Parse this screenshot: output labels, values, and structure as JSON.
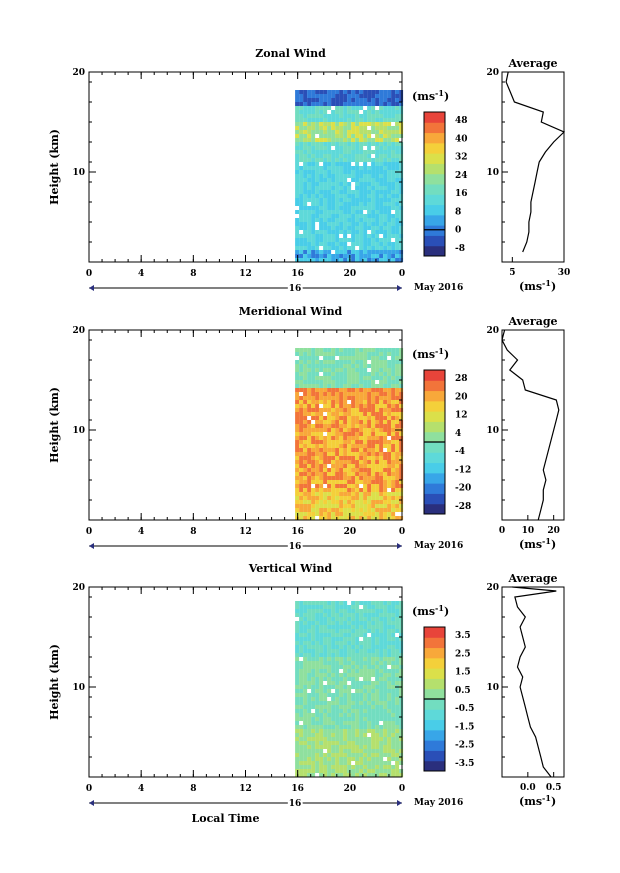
{
  "palette": [
    "#2a2f7d",
    "#2a4fb7",
    "#2f7ad9",
    "#38a6e8",
    "#49cde8",
    "#5ed9d9",
    "#72ddc0",
    "#8fe09e",
    "#b5e06d",
    "#dbe04a",
    "#f4d03a",
    "#f8a83a",
    "#f2743a",
    "#e8443a"
  ],
  "date_label": "May 2016",
  "day_label": "16",
  "xlabel": "Local Time",
  "chart_data": [
    {
      "type": "heatmap",
      "title": "Zonal Wind",
      "ylabel": "Height (km)",
      "x_ticks": [
        "0",
        "4",
        "8",
        "12",
        "16",
        "20",
        "0"
      ],
      "xlim": [
        0,
        24
      ],
      "ylim": [
        1,
        20
      ],
      "y_ticks": [
        10,
        20
      ],
      "data_x_start": 15.8,
      "colorbar": {
        "unit": "(ms",
        "unit_sup": "-1",
        "unit_end": ")",
        "ticks": [
          "-8",
          "0",
          "8",
          "16",
          "24",
          "32",
          "40",
          "48"
        ],
        "zero_index": 1
      },
      "profile": {
        "title": "Average",
        "xlim": [
          0,
          30
        ],
        "x_ticks": [
          {
            "v": 5,
            "label": "5"
          },
          {
            "v": 30,
            "label": "30"
          }
        ],
        "xlabel": "(ms",
        "heights": [
          2,
          3,
          4,
          5,
          6,
          7,
          8,
          9,
          10,
          11,
          12,
          13,
          14,
          15,
          16,
          17,
          18,
          19,
          20
        ],
        "values": [
          10,
          12,
          13,
          13,
          14,
          14,
          15,
          16,
          17,
          18,
          21,
          25,
          30,
          19,
          20,
          6,
          4,
          2,
          3
        ]
      }
    },
    {
      "type": "heatmap",
      "title": "Meridional Wind",
      "ylabel": "Height (km)",
      "x_ticks": [
        "0",
        "4",
        "8",
        "12",
        "16",
        "20",
        "0"
      ],
      "xlim": [
        0,
        24
      ],
      "ylim": [
        1,
        20
      ],
      "y_ticks": [
        10,
        20
      ],
      "data_x_start": 15.8,
      "colorbar": {
        "unit": "(ms",
        "unit_sup": "-1",
        "unit_end": ")",
        "ticks": [
          "-28",
          "-20",
          "-12",
          "-4",
          "4",
          "12",
          "20",
          "28"
        ],
        "zero_index": 3.5
      },
      "profile": {
        "title": "Average",
        "xlim": [
          0,
          24
        ],
        "x_ticks": [
          {
            "v": 0,
            "label": "0"
          },
          {
            "v": 10,
            "label": "10"
          },
          {
            "v": 20,
            "label": "20"
          }
        ],
        "xlabel": "(ms",
        "heights": [
          1,
          2,
          3,
          4,
          5,
          6,
          7,
          8,
          9,
          10,
          11,
          12,
          13,
          14,
          15,
          16,
          17,
          18,
          19,
          20
        ],
        "values": [
          14,
          15,
          16,
          16,
          17,
          16,
          17,
          18,
          19,
          20,
          21,
          22,
          21,
          9,
          8,
          3,
          6,
          2,
          0,
          1
        ]
      }
    },
    {
      "type": "heatmap",
      "title": "Vertical Wind",
      "ylabel": "Height (km)",
      "x_ticks": [
        "0",
        "4",
        "8",
        "12",
        "16",
        "20",
        "0"
      ],
      "xlim": [
        0,
        24
      ],
      "ylim": [
        1,
        20
      ],
      "y_ticks": [
        10,
        20
      ],
      "data_x_start": 15.8,
      "colorbar": {
        "unit": "(ms",
        "unit_sup": "-1",
        "unit_end": ")",
        "ticks": [
          "-3.5",
          "-2.5",
          "-1.5",
          "-0.5",
          "0.5",
          "1.5",
          "2.5",
          "3.5"
        ],
        "zero_index": 3.5
      },
      "profile": {
        "title": "Average",
        "xlim": [
          -0.5,
          0.7
        ],
        "x_ticks": [
          {
            "v": 0.0,
            "label": "0.0"
          },
          {
            "v": 0.5,
            "label": "0.5"
          }
        ],
        "xlabel": "(ms",
        "heights": [
          1,
          2,
          3,
          4,
          5,
          6,
          7,
          8,
          9,
          10,
          11,
          12,
          13,
          14,
          15,
          16,
          17,
          18,
          19,
          19.6,
          20
        ],
        "values": [
          0.45,
          0.3,
          0.25,
          0.2,
          0.15,
          0.05,
          0.0,
          -0.05,
          -0.1,
          -0.15,
          -0.1,
          -0.2,
          -0.15,
          -0.05,
          -0.1,
          -0.15,
          -0.05,
          -0.2,
          -0.25,
          0.55,
          -0.3
        ]
      }
    }
  ]
}
